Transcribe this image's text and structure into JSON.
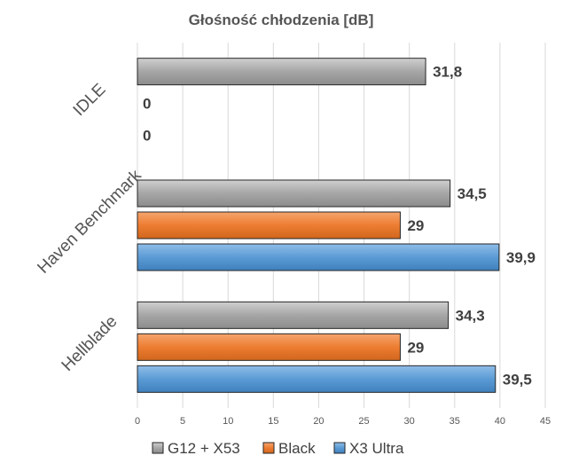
{
  "chart_data": {
    "type": "bar",
    "orientation": "horizontal",
    "title": "Głośność chłodzenia [dB]",
    "categories": [
      "IDLE",
      "Haven Benchmark",
      "Hellblade"
    ],
    "series": [
      {
        "name": "G12 + X53",
        "values": [
          31.8,
          34.5,
          34.3
        ],
        "labels": [
          "31,8",
          "34,5",
          "34,3"
        ],
        "color": "#a6a6a6"
      },
      {
        "name": "Black",
        "values": [
          0,
          29,
          29
        ],
        "labels": [
          "0",
          "29",
          "29"
        ],
        "color": "#ed7d31"
      },
      {
        "name": "X3 Ultra",
        "values": [
          0,
          39.9,
          39.5
        ],
        "labels": [
          "0",
          "39,9",
          "39,5"
        ],
        "color": "#5b9bd5"
      }
    ],
    "xlim": [
      0,
      45
    ],
    "xticks": [
      "0",
      "5",
      "10",
      "15",
      "20",
      "25",
      "30",
      "35",
      "40",
      "45"
    ],
    "grid": true,
    "legend_position": "bottom"
  }
}
